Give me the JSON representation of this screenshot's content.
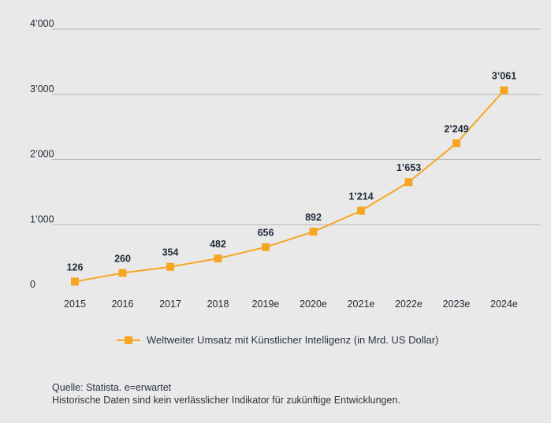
{
  "chart_data": {
    "type": "line",
    "categories": [
      "2015",
      "2016",
      "2017",
      "2018",
      "2019e",
      "2020e",
      "2021e",
      "2022e",
      "2023e",
      "2024e"
    ],
    "series": [
      {
        "name": "Weltweiter Umsatz mit Künstlicher Intelligenz (in Mrd. US Dollar)",
        "values": [
          126,
          260,
          354,
          482,
          656,
          892,
          1214,
          1653,
          2249,
          3061
        ],
        "labels": [
          "126",
          "260",
          "354",
          "482",
          "656",
          "892",
          "1’214",
          "1’653",
          "2’249",
          "3’061"
        ]
      }
    ],
    "ylim": [
      0,
      4000
    ],
    "y_ticks": [
      0,
      1000,
      2000,
      3000,
      4000
    ],
    "y_tick_labels": [
      "0",
      "1’000",
      "2’000",
      "3’000",
      "4’000"
    ],
    "grid": true,
    "legend_position": "bottom",
    "colors": {
      "series": "#f5a623",
      "grid": "#b8b8b8",
      "text": "#1f2a36",
      "background": "#e9e9e9"
    }
  },
  "footer": {
    "source": "Quelle: Statista. e=erwartet",
    "disclaimer": "Historische Daten sind kein verlässlicher Indikator für zukünftige Entwicklungen."
  }
}
